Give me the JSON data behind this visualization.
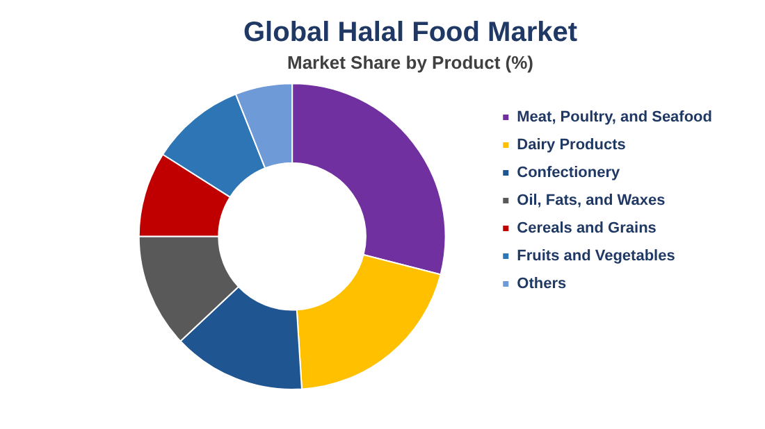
{
  "chart_data": {
    "type": "donut",
    "title": "Global Halal Food Market",
    "subtitle": "Market Share by Product (%)",
    "categories": [
      "Meat, Poultry, and Seafood",
      "Dairy Products",
      "Confectionery",
      "Oil, Fats, and Waxes",
      "Cereals and Grains",
      "Fruits and Vegetables",
      "Others"
    ],
    "values": [
      29,
      20,
      14,
      12,
      9,
      10,
      6
    ],
    "colors": [
      "#7030a0",
      "#ffc000",
      "#1f5591",
      "#595959",
      "#c00000",
      "#2e75b6",
      "#6f9ad8"
    ],
    "legend": "right"
  }
}
